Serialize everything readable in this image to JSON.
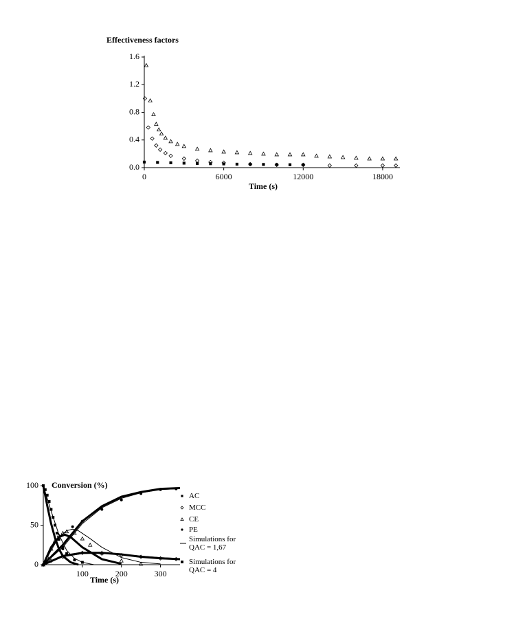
{
  "chart_data": [
    {
      "type": "scatter",
      "title": "Effectiveness factors",
      "x_label": "Time (s)",
      "xlim": [
        0,
        19300
      ],
      "ylim": [
        0,
        1.6
      ],
      "xticks": [
        0,
        6000,
        12000,
        18000
      ],
      "yticks": [
        {
          "value": 0,
          "label": "0.0"
        },
        0.4,
        0.8,
        1.2,
        1.6
      ],
      "series": [
        {
          "marker": "triangle",
          "color": "#000000",
          "x": [
            150,
            450,
            700,
            900,
            1100,
            1300,
            1600,
            2000,
            2500,
            3000,
            4000,
            5000,
            6000,
            7000,
            8000,
            9000,
            10000,
            11000,
            12000,
            13000,
            14000,
            15000,
            16000,
            17000,
            18000,
            19000
          ],
          "values": [
            1.48,
            0.97,
            0.77,
            0.63,
            0.55,
            0.49,
            0.43,
            0.38,
            0.34,
            0.31,
            0.27,
            0.25,
            0.23,
            0.22,
            0.21,
            0.2,
            0.19,
            0.19,
            0.19,
            0.17,
            0.16,
            0.15,
            0.14,
            0.13,
            0.13,
            0.13
          ]
        },
        {
          "marker": "diamond",
          "color": "#000000",
          "x": [
            50,
            300,
            600,
            900,
            1200,
            1600,
            2000,
            3000,
            4000,
            5000,
            6000,
            8000,
            10000,
            12000,
            14000,
            16000,
            18000,
            19000
          ],
          "values": [
            1.0,
            0.58,
            0.42,
            0.32,
            0.26,
            0.21,
            0.17,
            0.13,
            0.1,
            0.08,
            0.07,
            0.05,
            0.04,
            0.04,
            0.03,
            0.03,
            0.03,
            0.03
          ]
        },
        {
          "marker": "square",
          "color": "#000000",
          "x": [
            0,
            1000,
            2000,
            3000,
            4000,
            5000,
            6000,
            7000,
            8000,
            9000,
            10000,
            11000,
            12000
          ],
          "values": [
            0.08,
            0.075,
            0.07,
            0.065,
            0.06,
            0.057,
            0.054,
            0.05,
            0.048,
            0.046,
            0.044,
            0.042,
            0.04
          ]
        }
      ]
    },
    {
      "type": "scatter",
      "title": "Conversion (%)",
      "x_label": "Time (s)",
      "xlim": [
        0,
        350
      ],
      "ylim": [
        0,
        100
      ],
      "xticks": [
        100,
        200,
        300
      ],
      "yticks": [
        0,
        50,
        100
      ],
      "series": [
        {
          "name": "AC",
          "marker": "square",
          "color": "#000000",
          "x": [
            0,
            5,
            10,
            15,
            20,
            25,
            30,
            35,
            40,
            50,
            60,
            80,
            100
          ],
          "values": [
            100,
            95,
            88,
            80,
            70,
            60,
            50,
            40,
            32,
            22,
            14,
            6,
            3
          ]
        },
        {
          "name": "MCC",
          "marker": "diamond",
          "color": "#000000",
          "x": [
            0,
            20,
            50,
            100,
            150,
            200,
            250,
            300,
            340
          ],
          "values": [
            0,
            5,
            10,
            15,
            14,
            12,
            10,
            8,
            7
          ]
        },
        {
          "name": "CE",
          "marker": "triangle",
          "color": "#000000",
          "x": [
            0,
            10,
            20,
            30,
            40,
            50,
            60,
            80,
            100,
            120,
            150,
            200,
            250
          ],
          "values": [
            0,
            10,
            20,
            30,
            37,
            40,
            42,
            40,
            33,
            25,
            15,
            5,
            1
          ]
        },
        {
          "name": "PE",
          "marker": "circle",
          "color": "#000000",
          "x": [
            0,
            50,
            75,
            100,
            150,
            200,
            250,
            300,
            340
          ],
          "values": [
            0,
            20,
            48,
            55,
            70,
            82,
            90,
            95,
            96
          ]
        },
        {
          "name": "Simulations for QAC = 1,67",
          "marker": "line",
          "color": "#000000",
          "stroke_width": 1,
          "curves": [
            {
              "x": [
                0,
                20,
                40,
                60,
                80,
                100,
                130
              ],
              "values": [
                100,
                68,
                38,
                18,
                8,
                3,
                0
              ]
            },
            {
              "x": [
                0,
                20,
                40,
                60,
                75,
                90,
                120,
                150,
                200,
                250,
                300
              ],
              "values": [
                0,
                18,
                35,
                43,
                45,
                43,
                33,
                22,
                9,
                3,
                1
              ]
            },
            {
              "x": [
                0,
                50,
                100,
                150,
                200,
                250,
                300,
                340
              ],
              "values": [
                0,
                10,
                14,
                15,
                13,
                11,
                9,
                8
              ]
            },
            {
              "x": [
                0,
                50,
                100,
                150,
                200,
                250,
                300,
                340
              ],
              "values": [
                0,
                22,
                52,
                72,
                84,
                91,
                95,
                96
              ]
            }
          ]
        },
        {
          "name": "Simulations for QAC = 4",
          "marker": "thick",
          "color": "#000000",
          "stroke_width": 3,
          "curves": [
            {
              "x": [
                0,
                10,
                20,
                30,
                40,
                50,
                70,
                90
              ],
              "values": [
                100,
                75,
                52,
                34,
                20,
                11,
                3,
                0
              ]
            },
            {
              "x": [
                0,
                20,
                40,
                55,
                70,
                100,
                150,
                200
              ],
              "values": [
                0,
                22,
                35,
                38,
                35,
                22,
                7,
                1
              ]
            },
            {
              "x": [
                0,
                50,
                100,
                150,
                200,
                250,
                300,
                350
              ],
              "values": [
                0,
                11,
                15,
                15,
                13,
                10,
                8,
                7
              ]
            },
            {
              "x": [
                0,
                50,
                100,
                150,
                200,
                250,
                300,
                350
              ],
              "values": [
                0,
                25,
                55,
                74,
                86,
                92,
                96,
                97
              ]
            }
          ]
        }
      ]
    }
  ]
}
